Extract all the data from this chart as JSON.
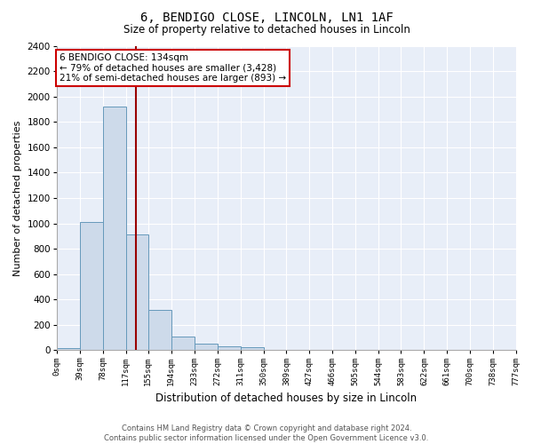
{
  "title1": "6, BENDIGO CLOSE, LINCOLN, LN1 1AF",
  "title2": "Size of property relative to detached houses in Lincoln",
  "xlabel": "Distribution of detached houses by size in Lincoln",
  "ylabel": "Number of detached properties",
  "bin_edges": [
    0,
    39,
    78,
    117,
    155,
    194,
    233,
    272,
    311,
    350,
    389,
    427,
    466,
    505,
    544,
    583,
    622,
    661,
    700,
    738,
    777
  ],
  "bin_labels": [
    "0sqm",
    "39sqm",
    "78sqm",
    "117sqm",
    "155sqm",
    "194sqm",
    "233sqm",
    "272sqm",
    "311sqm",
    "350sqm",
    "389sqm",
    "427sqm",
    "466sqm",
    "505sqm",
    "544sqm",
    "583sqm",
    "622sqm",
    "661sqm",
    "700sqm",
    "738sqm",
    "777sqm"
  ],
  "bar_heights": [
    20,
    1010,
    1920,
    910,
    320,
    110,
    55,
    30,
    25,
    0,
    0,
    0,
    0,
    0,
    0,
    0,
    0,
    0,
    0,
    0
  ],
  "bar_color": "#cddaea",
  "bar_edge_color": "#6699bb",
  "vline_x": 134,
  "vline_color": "#990000",
  "ylim": [
    0,
    2400
  ],
  "yticks": [
    0,
    200,
    400,
    600,
    800,
    1000,
    1200,
    1400,
    1600,
    1800,
    2000,
    2200,
    2400
  ],
  "annotation_text": "6 BENDIGO CLOSE: 134sqm\n← 79% of detached houses are smaller (3,428)\n21% of semi-detached houses are larger (893) →",
  "annotation_box_color": "#ffffff",
  "annotation_box_edge": "#cc0000",
  "background_color": "#e8eef8",
  "fig_bg_color": "#ffffff",
  "footnote": "Contains HM Land Registry data © Crown copyright and database right 2024.\nContains public sector information licensed under the Open Government Licence v3.0."
}
